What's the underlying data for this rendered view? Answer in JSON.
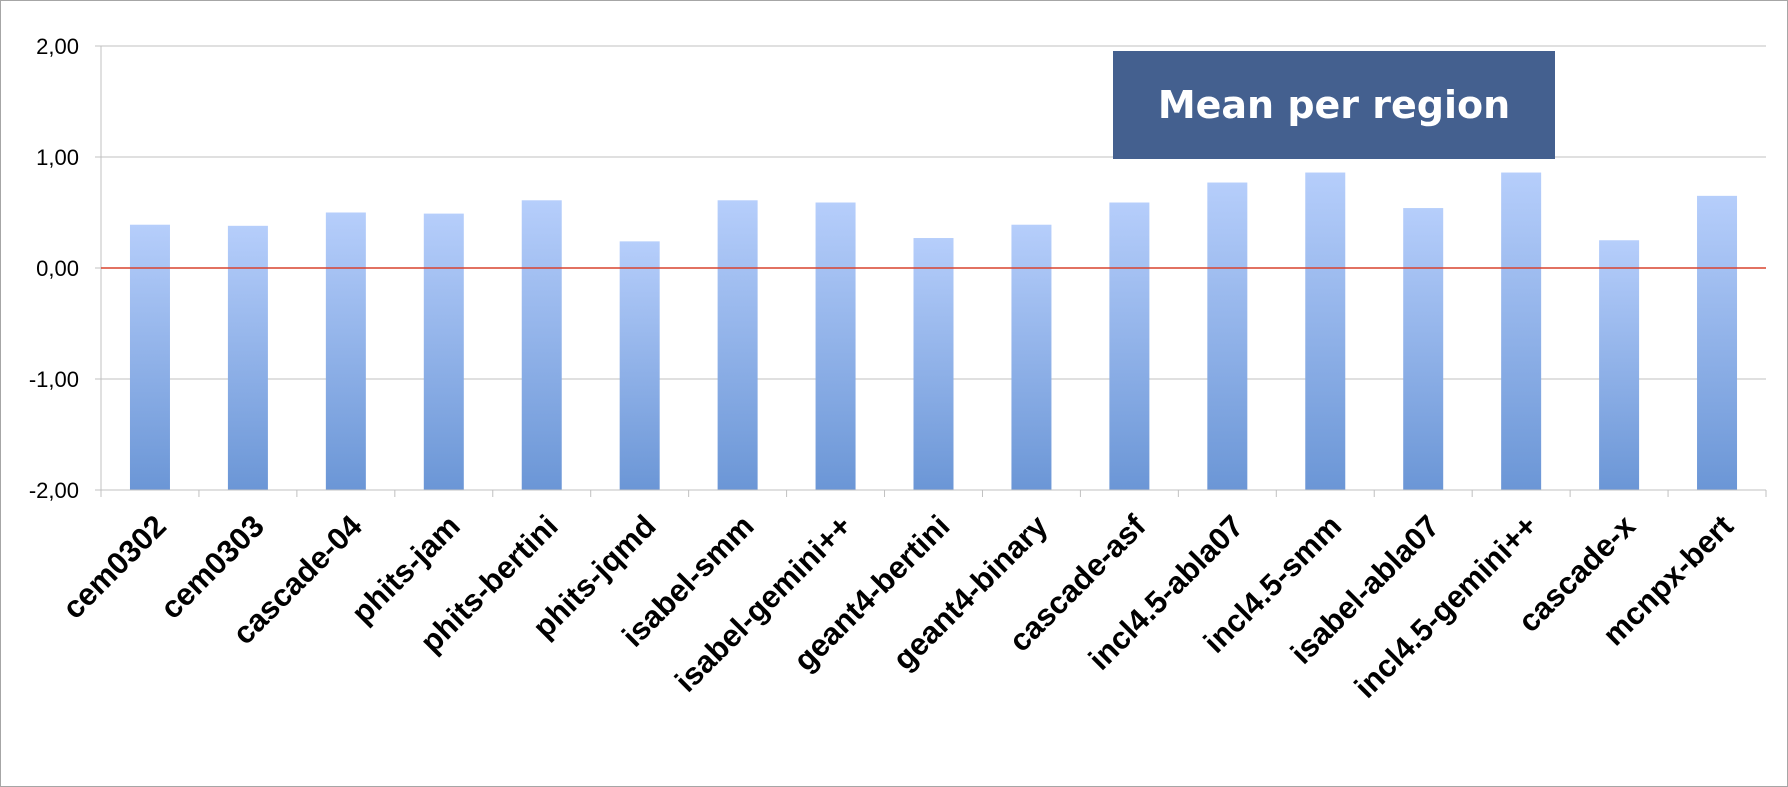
{
  "chart_data": {
    "type": "bar",
    "title": "Mean per region",
    "categories": [
      "cem0302",
      "cem0303",
      "cascade-04",
      "phits-jam",
      "phits-bertini",
      "phits-jqmd",
      "isabel-smm",
      "isabel-gemini++",
      "geant4-bertini",
      "geant4-binary",
      "cascade-asf",
      "incl4.5-abla07",
      "incl4.5-smm",
      "isabel-abla07",
      "incl4.5-gemini++",
      "cascade-x",
      "mcnpx-bert"
    ],
    "values": [
      0.39,
      0.38,
      0.5,
      0.49,
      0.61,
      0.24,
      0.61,
      0.59,
      0.27,
      0.39,
      0.59,
      0.77,
      0.86,
      0.54,
      0.86,
      0.25,
      0.65
    ],
    "yticks": [
      "2,00",
      "1,00",
      "0,00",
      "-1,00",
      "-2,00"
    ],
    "ylim": [
      -2,
      2
    ],
    "xlabel": "",
    "ylabel": "",
    "grid": true,
    "colors": {
      "bar_top": "#b6cefb",
      "bar_bottom": "#6b96d6",
      "zero_line": "#d9432e",
      "grid": "#c0c0c0",
      "title_bg": "#44608f"
    }
  }
}
